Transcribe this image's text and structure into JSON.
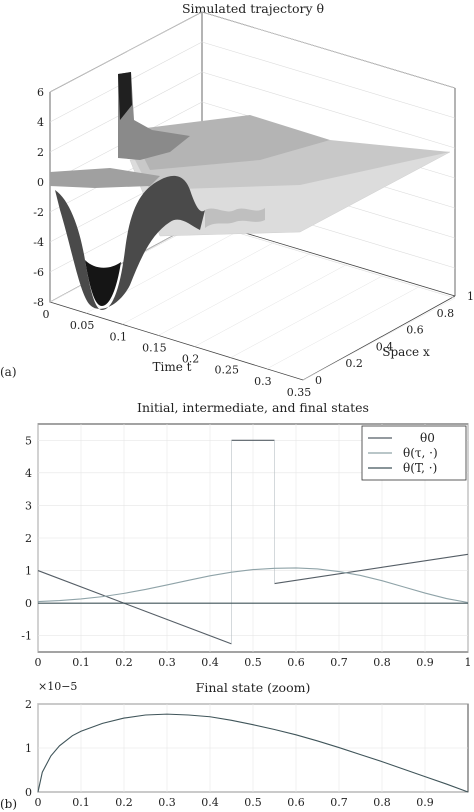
{
  "panel_labels": {
    "a": "(a)",
    "b": "(b)"
  },
  "chart_data": [
    {
      "type": "surface",
      "title": "Simulated trajectory θ",
      "xlabel": "Time t",
      "ylabel": "Space x",
      "zlabel": "",
      "x_ticks": [
        "0",
        "0.05",
        "0.1",
        "0.15",
        "0.2",
        "0.25",
        "0.3",
        "0.35"
      ],
      "y_ticks": [
        "0",
        "0.2",
        "0.4",
        "0.6",
        "0.8",
        "1"
      ],
      "z_ticks": [
        "-8",
        "-6",
        "-4",
        "-2",
        "0",
        "2",
        "4",
        "6"
      ],
      "xlim": [
        0,
        0.35
      ],
      "ylim": [
        0,
        1
      ],
      "zlim": [
        -8,
        6
      ],
      "grid": true
    },
    {
      "type": "line",
      "title": "Initial, intermediate, and final states",
      "x_ticks": [
        "0",
        "0.1",
        "0.2",
        "0.3",
        "0.4",
        "0.5",
        "0.6",
        "0.7",
        "0.8",
        "0.9",
        "1"
      ],
      "y_ticks": [
        "-1",
        "0",
        "1",
        "2",
        "3",
        "4",
        "5"
      ],
      "xlim": [
        0,
        1
      ],
      "ylim": [
        -1.5,
        5.5
      ],
      "legend_position": "top-right",
      "grid": true,
      "series": [
        {
          "name": "θ0",
          "color": "#555e66",
          "segments": [
            [
              [
                0,
                1.0
              ],
              [
                0.45,
                -1.25
              ]
            ],
            [
              [
                0.45,
                5.0
              ],
              [
                0.55,
                5.0
              ]
            ],
            [
              [
                0.55,
                0.6
              ],
              [
                1.0,
                1.5
              ]
            ]
          ]
        },
        {
          "name": "θ(τ, ·)",
          "color": "#8fa3a8",
          "x": [
            0,
            0.05,
            0.1,
            0.15,
            0.2,
            0.25,
            0.3,
            0.35,
            0.4,
            0.45,
            0.5,
            0.55,
            0.6,
            0.65,
            0.7,
            0.75,
            0.8,
            0.85,
            0.9,
            0.95,
            1.0
          ],
          "y": [
            0.05,
            0.08,
            0.13,
            0.2,
            0.3,
            0.42,
            0.56,
            0.7,
            0.84,
            0.95,
            1.03,
            1.07,
            1.08,
            1.05,
            0.97,
            0.85,
            0.69,
            0.5,
            0.31,
            0.14,
            0.02
          ]
        },
        {
          "name": "θ(T, ·)",
          "color": "#40555a",
          "x": [
            0,
            1
          ],
          "y": [
            0,
            0
          ]
        }
      ]
    },
    {
      "type": "line",
      "title": "Final state (zoom)",
      "y_exponent_label": "×10−5",
      "x_ticks": [
        "0",
        "0.1",
        "0.2",
        "0.3",
        "0.4",
        "0.5",
        "0.6",
        "0.7",
        "0.8",
        "0.9"
      ],
      "y_ticks": [
        "0",
        "1",
        "2"
      ],
      "xlim": [
        0,
        1
      ],
      "ylim": [
        0,
        2
      ],
      "grid": true,
      "series": [
        {
          "color": "#40555a",
          "x": [
            0,
            0.01,
            0.03,
            0.05,
            0.08,
            0.1,
            0.15,
            0.2,
            0.25,
            0.3,
            0.35,
            0.4,
            0.45,
            0.5,
            0.55,
            0.6,
            0.65,
            0.7,
            0.75,
            0.8,
            0.85,
            0.9,
            0.95,
            1.0
          ],
          "y": [
            0,
            0.45,
            0.82,
            1.05,
            1.28,
            1.38,
            1.56,
            1.68,
            1.75,
            1.77,
            1.75,
            1.71,
            1.63,
            1.53,
            1.42,
            1.3,
            1.16,
            1.01,
            0.85,
            0.69,
            0.52,
            0.35,
            0.18,
            0.0
          ]
        }
      ]
    }
  ]
}
